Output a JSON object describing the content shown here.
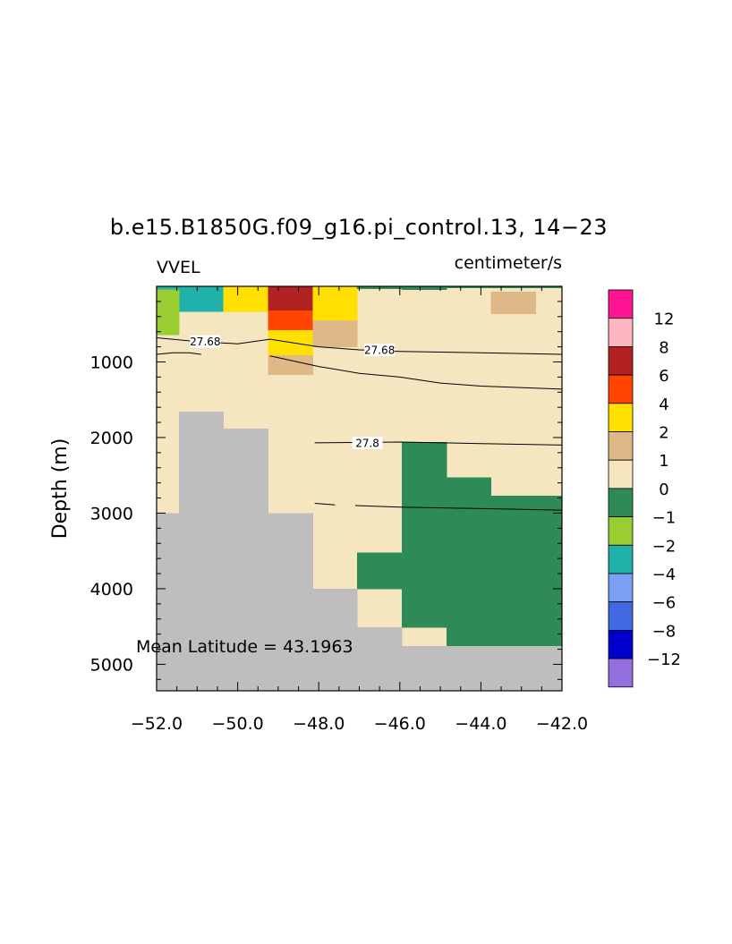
{
  "chart_data": {
    "type": "heatmap",
    "title": "b.e15.B1850G.f09_g16.pi_control.13, 14−23",
    "variable_label": "VVEL",
    "units_label": "centimeter/s",
    "xlabel": "",
    "ylabel": "Depth (m)",
    "xlim": [
      -52.0,
      -42.0
    ],
    "ylim": [
      5350,
      0
    ],
    "x_ticks": [
      "−52.0",
      "−50.0",
      "−48.0",
      "−46.0",
      "−44.0",
      "−42.0"
    ],
    "y_ticks": [
      "1000",
      "2000",
      "3000",
      "4000",
      "5000"
    ],
    "annotation": "Mean Latitude = 43.1963",
    "colorbar": {
      "labels": [
        "12",
        "8",
        "6",
        "4",
        "2",
        "1",
        "0",
        "−1",
        "−2",
        "−4",
        "−6",
        "−8",
        "−12"
      ],
      "colors": [
        "#ff1493",
        "#ffb6c1",
        "#b22222",
        "#ff4500",
        "#ffe000",
        "#deb887",
        "#f5e6c0",
        "#2e8b57",
        "#9acd32",
        "#20b2aa",
        "#7b9ff2",
        "#4169e1",
        "#0000cd",
        "#9370db"
      ]
    },
    "land_color": "#bebebe",
    "cells": [
      {
        "x": [
          -52.0,
          -42.0
        ],
        "y": [
          0,
          5350
        ],
        "c": "#f5e6c0"
      },
      {
        "x": [
          -52.0,
          -51.45
        ],
        "y": [
          0,
          40
        ],
        "c": "#20b2aa"
      },
      {
        "x": [
          -51.45,
          -50.35
        ],
        "y": [
          0,
          330
        ],
        "c": "#20b2aa"
      },
      {
        "x": [
          -52.0,
          -51.45
        ],
        "y": [
          40,
          640
        ],
        "c": "#9acd32"
      },
      {
        "x": [
          -50.35,
          -49.25
        ],
        "y": [
          0,
          330
        ],
        "c": "#ffe000"
      },
      {
        "x": [
          -49.25,
          -48.15
        ],
        "y": [
          0,
          320
        ],
        "c": "#b22222"
      },
      {
        "x": [
          -49.25,
          -48.15
        ],
        "y": [
          320,
          580
        ],
        "c": "#ff4500"
      },
      {
        "x": [
          -49.25,
          -48.15
        ],
        "y": [
          580,
          910
        ],
        "c": "#ffe000"
      },
      {
        "x": [
          -49.25,
          -48.15
        ],
        "y": [
          910,
          1170
        ],
        "c": "#deb887"
      },
      {
        "x": [
          -48.15,
          -47.05
        ],
        "y": [
          0,
          450
        ],
        "c": "#ffe000"
      },
      {
        "x": [
          -48.15,
          -47.05
        ],
        "y": [
          450,
          800
        ],
        "c": "#deb887"
      },
      {
        "x": [
          -47.05,
          -45.95
        ],
        "y": [
          0,
          30
        ],
        "c": "#2e8b57"
      },
      {
        "x": [
          -45.95,
          -44.85
        ],
        "y": [
          0,
          40
        ],
        "c": "#2e8b57"
      },
      {
        "x": [
          -44.85,
          -43.75
        ],
        "y": [
          0,
          20
        ],
        "c": "#2e8b57"
      },
      {
        "x": [
          -43.75,
          -42.65
        ],
        "y": [
          0,
          20
        ],
        "c": "#2e8b57"
      },
      {
        "x": [
          -42.65,
          -42.0
        ],
        "y": [
          0,
          20
        ],
        "c": "#2e8b57"
      },
      {
        "x": [
          -43.75,
          -42.65
        ],
        "y": [
          70,
          360
        ],
        "c": "#deb887"
      },
      {
        "x": [
          -45.95,
          -44.85
        ],
        "y": [
          2060,
          4510
        ],
        "c": "#2e8b57"
      },
      {
        "x": [
          -44.85,
          -43.75
        ],
        "y": [
          2530,
          4760
        ],
        "c": "#2e8b57"
      },
      {
        "x": [
          -43.75,
          -42.0
        ],
        "y": [
          2770,
          4760
        ],
        "c": "#2e8b57"
      },
      {
        "x": [
          -47.05,
          -45.95
        ],
        "y": [
          3520,
          4000
        ],
        "c": "#2e8b57"
      },
      {
        "x": [
          -52.0,
          -51.45
        ],
        "y": [
          3000,
          5350
        ],
        "c": "#bebebe"
      },
      {
        "x": [
          -51.45,
          -50.35
        ],
        "y": [
          1660,
          5350
        ],
        "c": "#bebebe"
      },
      {
        "x": [
          -50.35,
          -49.25
        ],
        "y": [
          1880,
          5350
        ],
        "c": "#bebebe"
      },
      {
        "x": [
          -49.25,
          -48.15
        ],
        "y": [
          3000,
          5350
        ],
        "c": "#bebebe"
      },
      {
        "x": [
          -48.15,
          -47.05
        ],
        "y": [
          4000,
          5350
        ],
        "c": "#bebebe"
      },
      {
        "x": [
          -47.05,
          -45.95
        ],
        "y": [
          4510,
          5350
        ],
        "c": "#bebebe"
      },
      {
        "x": [
          -45.95,
          -42.0
        ],
        "y": [
          4760,
          5350
        ],
        "c": "#bebebe"
      }
    ],
    "contours": [
      {
        "label": "27.68",
        "points": [
          [
            -52.0,
            680
          ],
          [
            -51.0,
            730
          ],
          [
            -50.0,
            760
          ],
          [
            -49.2,
            700
          ],
          [
            -48.0,
            800
          ],
          [
            -47.0,
            840
          ],
          [
            -46.0,
            860
          ],
          [
            -44.0,
            880
          ],
          [
            -42.0,
            900
          ]
        ],
        "labels_at": [
          [
            -50.8,
            730
          ],
          [
            -46.5,
            840
          ]
        ]
      },
      {
        "label": "",
        "points": [
          [
            -52.0,
            900
          ],
          [
            -51.6,
            880
          ],
          [
            -51.2,
            880
          ],
          [
            -50.9,
            900
          ]
        ]
      },
      {
        "label": "",
        "points": [
          [
            -49.2,
            920
          ],
          [
            -48.0,
            1060
          ],
          [
            -47.0,
            1150
          ],
          [
            -46.0,
            1200
          ],
          [
            -45.0,
            1280
          ],
          [
            -44.0,
            1320
          ],
          [
            -42.0,
            1360
          ]
        ]
      },
      {
        "label": "27.8",
        "points": [
          [
            -48.1,
            2070
          ],
          [
            -46.0,
            2060
          ],
          [
            -44.0,
            2080
          ],
          [
            -42.0,
            2100
          ]
        ],
        "labels_at": [
          [
            -46.8,
            2070
          ]
        ]
      },
      {
        "label": "",
        "points": [
          [
            -48.1,
            2870
          ],
          [
            -47.6,
            2890
          ]
        ]
      },
      {
        "label": "",
        "points": [
          [
            -47.1,
            2900
          ],
          [
            -46.0,
            2920
          ],
          [
            -44.0,
            2940
          ],
          [
            -42.0,
            2960
          ]
        ]
      }
    ]
  }
}
